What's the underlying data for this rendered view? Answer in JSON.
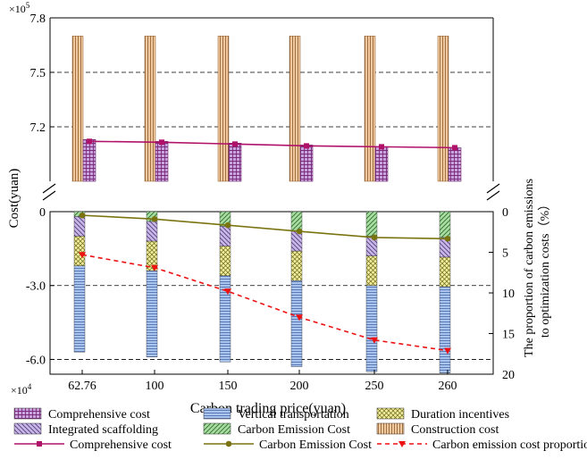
{
  "chart_data": {
    "type": "bar",
    "x_label": "Carbon trading price(yuan)",
    "y_label_left": "Cost(yuan)",
    "y_label_right_line1": "The proportion of carbon emissions",
    "y_label_right_line2": "to optimization costs（%）",
    "categories": [
      "62.76",
      "100",
      "150",
      "200",
      "250",
      "260"
    ],
    "upper_scale_label": "×10",
    "upper_scale_exp": "5",
    "lower_scale_label": "×10",
    "lower_scale_exp": "4",
    "upper_axis": {
      "range": [
        6.9,
        7.8
      ],
      "ticks": [
        "7.8",
        "7.5",
        "7.2"
      ],
      "tick_values": [
        7.8,
        7.5,
        7.2
      ]
    },
    "lower_axis": {
      "range": [
        -6.6,
        0
      ],
      "ticks": [
        "0",
        "-3.0",
        "-6.0"
      ],
      "tick_values": [
        0,
        -3.0,
        -6.0
      ]
    },
    "right_axis": {
      "range": [
        0,
        20
      ],
      "ticks": [
        "0",
        "5",
        "10",
        "15",
        "20"
      ],
      "tick_values": [
        0,
        5,
        10,
        15,
        20
      ]
    },
    "series": [
      {
        "name": "Construction cost",
        "unit": "x1e5",
        "values": [
          7.7,
          7.7,
          7.7,
          7.7,
          7.7,
          7.7
        ]
      },
      {
        "name": "Comprehensive cost",
        "unit": "x1e5",
        "values": [
          7.13,
          7.12,
          7.11,
          7.1,
          7.09,
          7.085
        ]
      },
      {
        "name": "Carbon Emission Cost",
        "unit": "x1e4",
        "values": [
          -0.2,
          -0.4,
          -0.6,
          -0.8,
          -1.0,
          -1.05
        ]
      },
      {
        "name": "Integrated scaffolding",
        "unit": "x1e4",
        "values": [
          -0.8,
          -0.8,
          -0.8,
          -0.8,
          -0.8,
          -0.8
        ]
      },
      {
        "name": "Duration incentives",
        "unit": "x1e4",
        "values": [
          -1.2,
          -1.2,
          -1.2,
          -1.2,
          -1.2,
          -1.2
        ]
      },
      {
        "name": "Vertical transportation",
        "unit": "x1e4",
        "values": [
          -3.5,
          -3.5,
          -3.5,
          -3.5,
          -3.5,
          -3.5
        ]
      }
    ],
    "lines": [
      {
        "name": "Comprehensive cost",
        "unit": "x1e5",
        "values": [
          7.12,
          7.115,
          7.105,
          7.095,
          7.09,
          7.085
        ]
      },
      {
        "name": "Carbon Emission Cost",
        "unit": "x1e4",
        "values": [
          -0.15,
          -0.3,
          -0.55,
          -0.8,
          -1.05,
          -1.1
        ]
      },
      {
        "name": "Carbon emission cost proportion",
        "unit": "%",
        "values": [
          5.3,
          6.9,
          9.8,
          13.0,
          15.8,
          17.1
        ]
      }
    ],
    "legend": [
      {
        "label": "Comprehensive cost",
        "kind": "patch",
        "pattern": "pat-comp"
      },
      {
        "label": "Vertical transportation",
        "kind": "patch",
        "pattern": "pat-vert"
      },
      {
        "label": "Duration incentives",
        "kind": "patch",
        "pattern": "pat-dur"
      },
      {
        "label": "Integrated scaffolding",
        "kind": "patch",
        "pattern": "pat-scaf"
      },
      {
        "label": "Carbon Emission Cost",
        "kind": "patch",
        "pattern": "pat-carb"
      },
      {
        "label": "Construction cost",
        "kind": "patch",
        "pattern": "pat-cons"
      },
      {
        "label": "Comprehensive cost",
        "kind": "line-comp"
      },
      {
        "label": "Carbon Emission Cost",
        "kind": "line-carb"
      },
      {
        "label": "Carbon emission cost proportion",
        "kind": "line-prop"
      }
    ],
    "colors": {
      "comprehensive": "#c8a3dc",
      "vertical": "#a9c4ee",
      "duration": "#f4ee9a",
      "scaffolding": "#c9b5e6",
      "carbon": "#a8dca0",
      "construction": "#f2c89e",
      "line_comprehensive": "#b0126a",
      "line_carbon": "#7a7410",
      "line_proportion": "#ee1111"
    }
  }
}
